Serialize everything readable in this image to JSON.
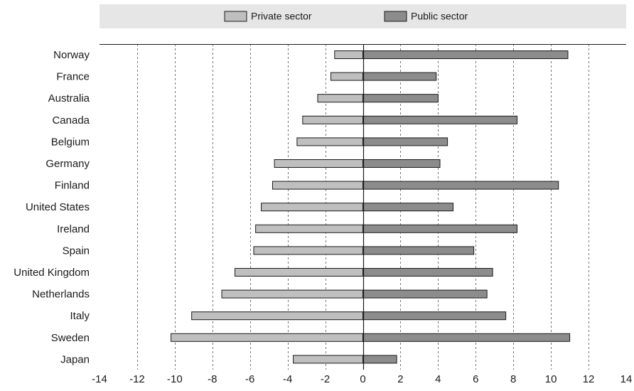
{
  "chart_data": {
    "type": "bar",
    "orientation": "horizontal",
    "title": "",
    "xlabel": "",
    "ylabel": "",
    "categories": [
      "Norway",
      "France",
      "Australia",
      "Canada",
      "Belgium",
      "Germany",
      "Finland",
      "United States",
      "Ireland",
      "Spain",
      "United Kingdom",
      "Netherlands",
      "Italy",
      "Sweden",
      "Japan"
    ],
    "series": [
      {
        "name": "Private sector",
        "color": "#bfbfbf",
        "values": [
          -1.5,
          -1.7,
          -2.4,
          -3.2,
          -3.5,
          -4.7,
          -4.8,
          -5.4,
          -5.7,
          -5.8,
          -6.8,
          -7.5,
          -9.1,
          -10.2,
          -3.7
        ]
      },
      {
        "name": "Public sector",
        "color": "#8c8c8c",
        "values": [
          10.9,
          3.9,
          4.0,
          8.2,
          4.5,
          4.1,
          10.4,
          4.8,
          8.2,
          5.9,
          6.9,
          6.6,
          7.6,
          11.0,
          1.8
        ]
      }
    ],
    "xlim": [
      -14,
      14
    ],
    "xticks": [
      -14,
      -12,
      -10,
      -8,
      -6,
      -4,
      -2,
      0,
      2,
      4,
      6,
      8,
      10,
      12,
      14
    ],
    "grid": "vertical dashed",
    "legend_position": "top"
  }
}
